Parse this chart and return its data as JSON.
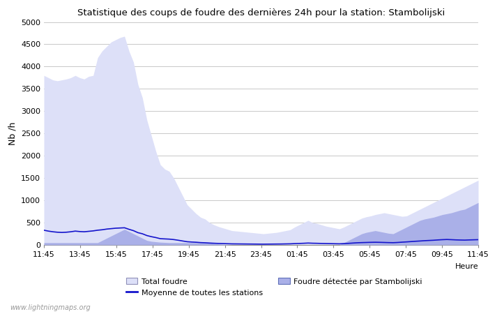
{
  "title": "Statistique des coups de foudre des dernières 24h pour la station: Stambolijski",
  "ylabel": "Nb /h",
  "watermark": "www.lightningmaps.org",
  "x_labels": [
    "11:45",
    "13:45",
    "15:45",
    "17:45",
    "19:45",
    "21:45",
    "23:45",
    "01:45",
    "03:45",
    "05:45",
    "07:45",
    "09:45",
    "11:45"
  ],
  "xlabel_right": "Heure",
  "ylim": [
    0,
    5000
  ],
  "yticks": [
    0,
    500,
    1000,
    1500,
    2000,
    2500,
    3000,
    3500,
    4000,
    4500,
    5000
  ],
  "background_color": "#ffffff",
  "plot_bg_color": "#ffffff",
  "grid_color": "#c8c8c8",
  "total_foudre_color": "#dde0f8",
  "stambolijski_color": "#aab0e8",
  "mean_line_color": "#1414cc",
  "legend_total_color": "#dde0f8",
  "legend_stambo_color": "#aab0e8",
  "total_foudre_values": [
    3800,
    3750,
    3700,
    3680,
    3700,
    3720,
    3750,
    3800,
    3750,
    3720,
    3780,
    3800,
    4200,
    4350,
    4450,
    4550,
    4600,
    4650,
    4680,
    4350,
    4100,
    3600,
    3300,
    2800,
    2450,
    2100,
    1800,
    1700,
    1650,
    1500,
    1300,
    1100,
    900,
    800,
    700,
    620,
    580,
    500,
    450,
    410,
    380,
    350,
    320,
    310,
    300,
    290,
    280,
    270,
    260,
    250,
    260,
    270,
    280,
    300,
    320,
    340,
    400,
    450,
    500,
    550,
    500,
    480,
    450,
    420,
    400,
    380,
    360,
    400,
    450,
    500,
    550,
    600,
    630,
    650,
    680,
    700,
    720,
    700,
    680,
    660,
    640,
    650,
    700,
    750,
    800,
    850,
    900,
    950,
    1000,
    1050,
    1100,
    1150,
    1200,
    1250,
    1300,
    1350,
    1400,
    1450
  ],
  "stambolijski_values": [
    50,
    50,
    50,
    50,
    50,
    50,
    50,
    50,
    50,
    50,
    50,
    50,
    50,
    100,
    150,
    200,
    250,
    300,
    350,
    300,
    250,
    200,
    150,
    100,
    80,
    70,
    60,
    55,
    50,
    50,
    50,
    50,
    50,
    50,
    50,
    50,
    50,
    50,
    30,
    20,
    10,
    5,
    0,
    0,
    0,
    0,
    0,
    0,
    0,
    0,
    0,
    0,
    0,
    0,
    0,
    0,
    0,
    0,
    0,
    0,
    0,
    0,
    0,
    0,
    0,
    0,
    0,
    50,
    100,
    150,
    200,
    250,
    280,
    300,
    320,
    300,
    280,
    260,
    250,
    300,
    350,
    400,
    450,
    500,
    550,
    580,
    600,
    620,
    650,
    680,
    700,
    720,
    750,
    780,
    800,
    850,
    900,
    950
  ],
  "mean_values": [
    330,
    310,
    295,
    285,
    280,
    285,
    295,
    310,
    300,
    295,
    305,
    315,
    330,
    340,
    355,
    365,
    375,
    380,
    385,
    350,
    320,
    275,
    250,
    210,
    185,
    165,
    140,
    135,
    130,
    120,
    105,
    88,
    72,
    65,
    60,
    52,
    48,
    42,
    37,
    33,
    30,
    27,
    24,
    23,
    22,
    21,
    20,
    19,
    18,
    17,
    18,
    19,
    20,
    21,
    23,
    25,
    30,
    33,
    37,
    42,
    38,
    36,
    33,
    31,
    29,
    27,
    25,
    30,
    35,
    42,
    48,
    52,
    55,
    58,
    60,
    58,
    55,
    52,
    50,
    55,
    62,
    68,
    75,
    82,
    88,
    95,
    100,
    105,
    112,
    118,
    122,
    118,
    113,
    110,
    108,
    112,
    115,
    118
  ]
}
